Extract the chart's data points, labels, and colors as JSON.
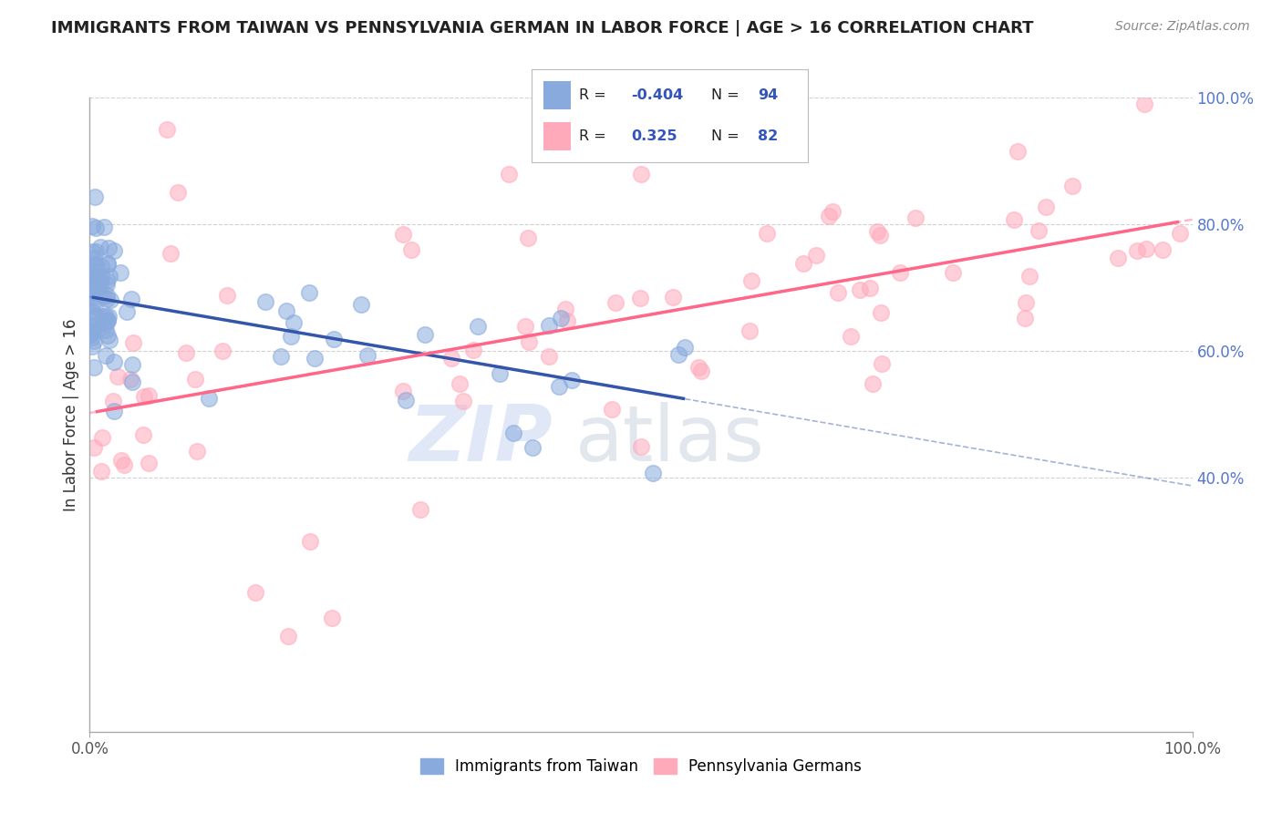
{
  "title": "IMMIGRANTS FROM TAIWAN VS PENNSYLVANIA GERMAN IN LABOR FORCE | AGE > 16 CORRELATION CHART",
  "source": "Source: ZipAtlas.com",
  "ylabel": "In Labor Force | Age > 16",
  "legend_label1": "Immigrants from Taiwan",
  "legend_label2": "Pennsylvania Germans",
  "R1": -0.404,
  "N1": 94,
  "R2": 0.325,
  "N2": 82,
  "ytick_vals": [
    0.4,
    0.6,
    0.8,
    1.0
  ],
  "ytick_labels": [
    "40.0%",
    "60.0%",
    "80.0%",
    "100.0%"
  ],
  "blue_color": "#88AADD",
  "pink_color": "#FFAABB",
  "blue_line_color": "#3355AA",
  "pink_line_color": "#FF6688",
  "background_color": "#FFFFFF",
  "watermark1": "ZIP",
  "watermark2": "atlas",
  "xlim": [
    0,
    1.0
  ],
  "ylim": [
    0,
    1.0
  ],
  "title_fontsize": 13,
  "source_fontsize": 10,
  "tick_fontsize": 12,
  "ylabel_fontsize": 12,
  "watermark_color1": "#AABBDD",
  "watermark_color2": "#99AACC"
}
